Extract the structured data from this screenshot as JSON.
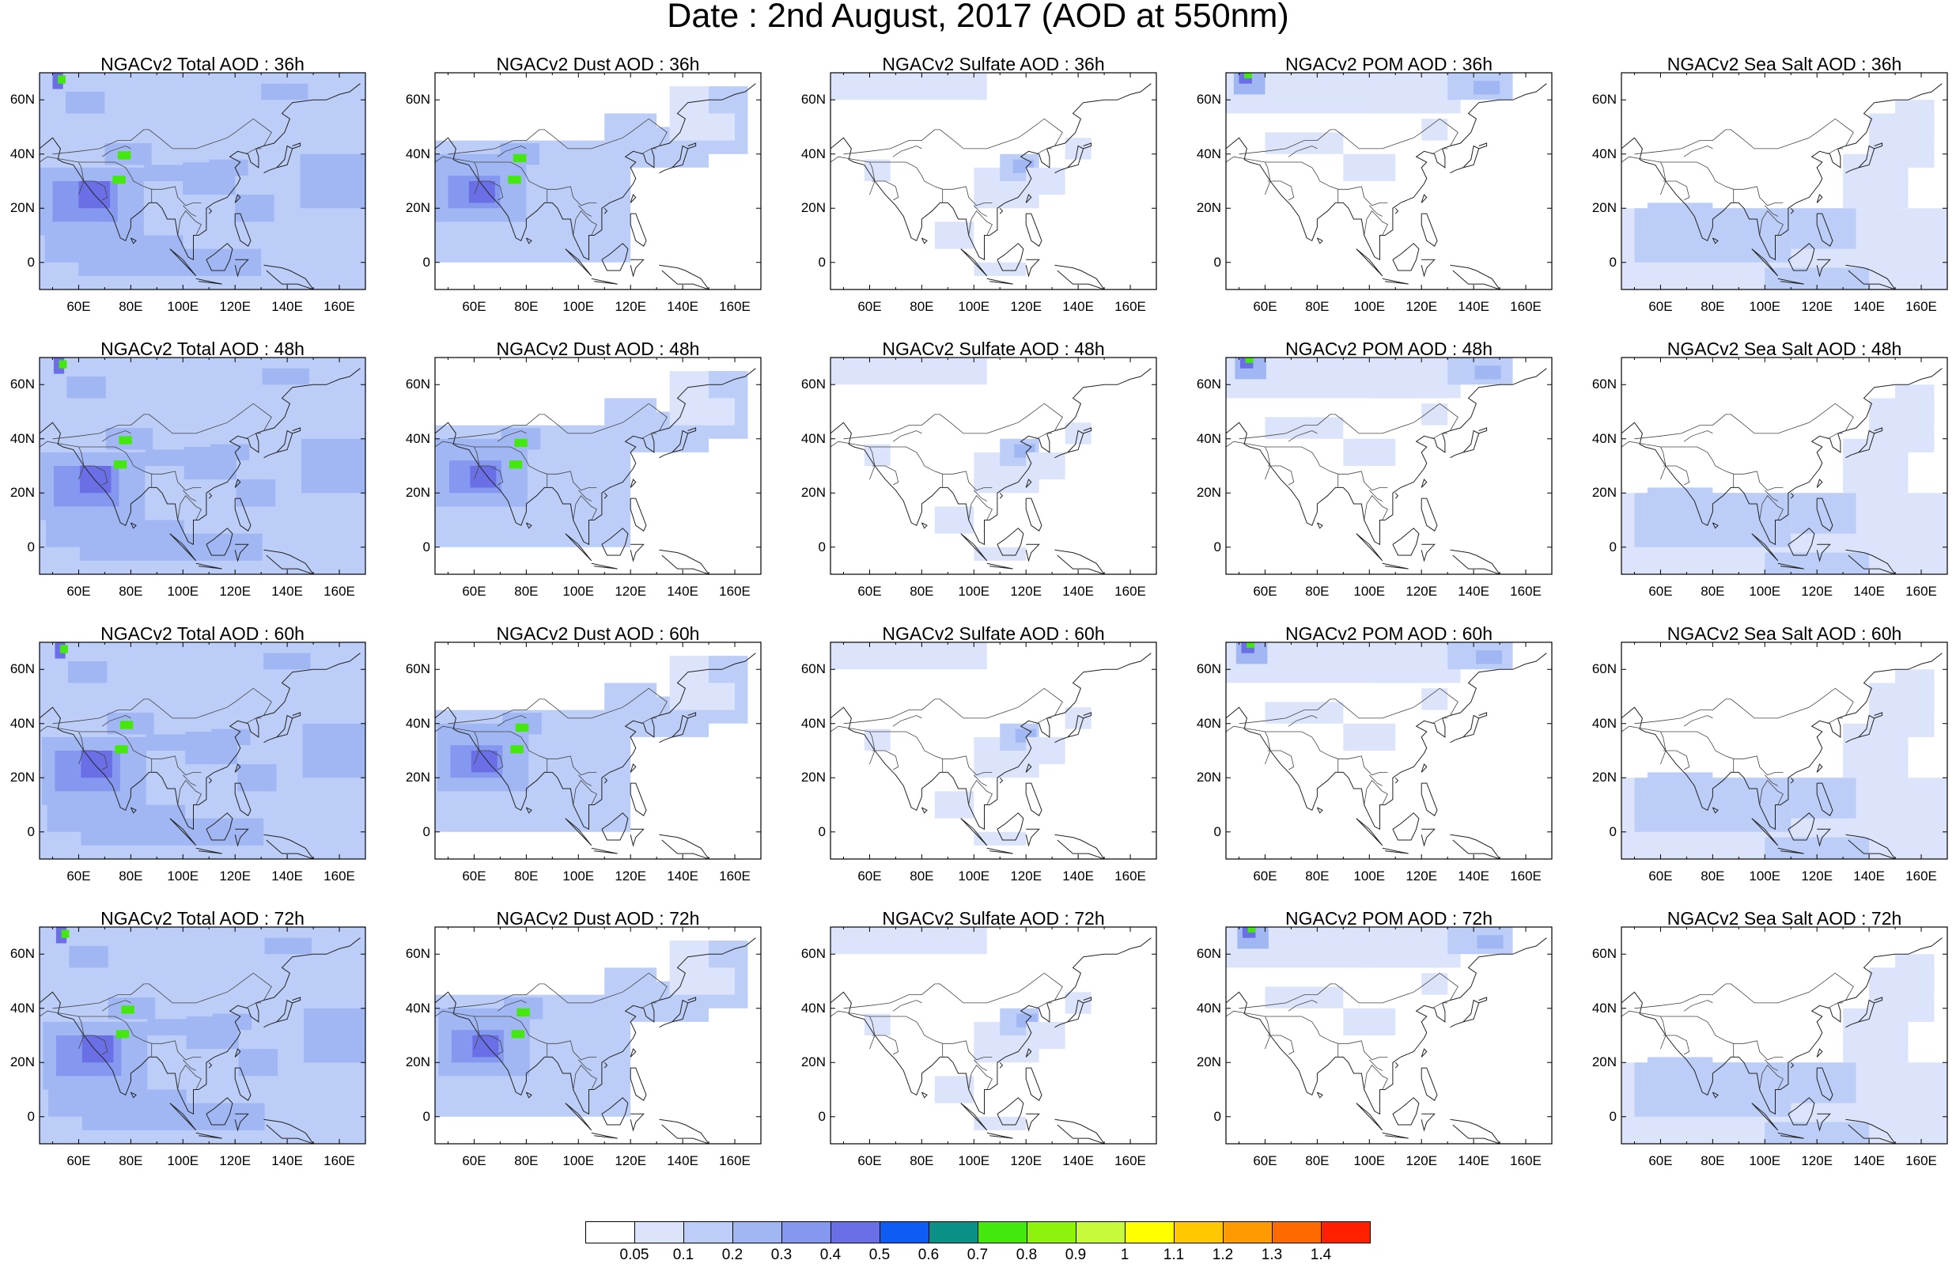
{
  "title": "Date : 2nd August, 2017 (AOD at 550nm)",
  "lat_labels": [
    "60N",
    "40N",
    "20N",
    "0"
  ],
  "lon_labels": [
    "60E",
    "80E",
    "100E",
    "120E",
    "140E",
    "160E"
  ],
  "panels": [
    {
      "title": "NGACv2 Total AOD : 36h",
      "species": "total"
    },
    {
      "title": "NGACv2 Dust AOD : 36h",
      "species": "dust"
    },
    {
      "title": "NGACv2 Sulfate AOD : 36h",
      "species": "sulfate"
    },
    {
      "title": "NGACv2 POM AOD : 36h",
      "species": "pom"
    },
    {
      "title": "NGACv2 Sea Salt AOD : 36h",
      "species": "seasalt"
    },
    {
      "title": "NGACv2 Total AOD : 48h",
      "species": "total"
    },
    {
      "title": "NGACv2 Dust AOD : 48h",
      "species": "dust"
    },
    {
      "title": "NGACv2 Sulfate AOD : 48h",
      "species": "sulfate"
    },
    {
      "title": "NGACv2 POM AOD : 48h",
      "species": "pom"
    },
    {
      "title": "NGACv2 Sea Salt AOD : 48h",
      "species": "seasalt"
    },
    {
      "title": "NGACv2 Total AOD : 60h",
      "species": "total"
    },
    {
      "title": "NGACv2 Dust AOD : 60h",
      "species": "dust"
    },
    {
      "title": "NGACv2 Sulfate AOD : 60h",
      "species": "sulfate"
    },
    {
      "title": "NGACv2 POM AOD : 60h",
      "species": "pom"
    },
    {
      "title": "NGACv2 Sea Salt AOD : 60h",
      "species": "seasalt"
    },
    {
      "title": "NGACv2 Total AOD : 72h",
      "species": "total"
    },
    {
      "title": "NGACv2 Dust AOD : 72h",
      "species": "dust"
    },
    {
      "title": "NGACv2 Sulfate AOD : 72h",
      "species": "sulfate"
    },
    {
      "title": "NGACv2 POM AOD : 72h",
      "species": "pom"
    },
    {
      "title": "NGACv2 Sea Salt  AOD : 72h",
      "species": "seasalt"
    }
  ],
  "colorbar": {
    "labels": [
      "0.05",
      "0.1",
      "0.2",
      "0.3",
      "0.4",
      "0.5",
      "0.6",
      "0.7",
      "0.8",
      "0.9",
      "1",
      "1.1",
      "1.2",
      "1.3",
      "1.4"
    ],
    "colors": [
      "#ffffff",
      "#dbe4fb",
      "#bccdf8",
      "#a1b7f4",
      "#8498f0",
      "#6b6fe6",
      "#0f5cf5",
      "#0a9084",
      "#45e80e",
      "#8cf20e",
      "#c7fa3a",
      "#ffff00",
      "#ffc800",
      "#ff9a00",
      "#ff6a00",
      "#ff2000"
    ]
  }
}
